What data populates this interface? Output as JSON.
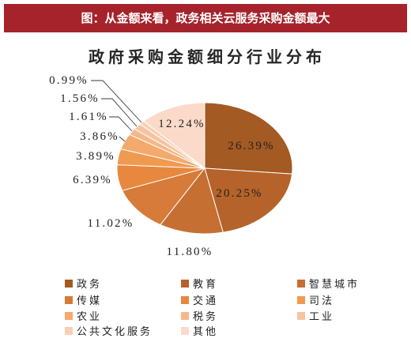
{
  "banner": {
    "caption": "图：从金额来看，政务相关云服务采购金额最大",
    "color": "#A6232B"
  },
  "chart_data": {
    "type": "pie",
    "title": "政府采购金额细分行业分布",
    "unit": "%",
    "categories": [
      "政务",
      "教育",
      "智慧城市",
      "传媒",
      "交通",
      "司法",
      "农业",
      "税务",
      "工业",
      "公共文化服务",
      "其他"
    ],
    "values": [
      26.39,
      20.25,
      11.8,
      11.02,
      6.39,
      3.89,
      3.86,
      1.61,
      1.56,
      0.99,
      12.24
    ],
    "colors": [
      "#A35A23",
      "#B5632A",
      "#C66F33",
      "#D67B3A",
      "#E8883E",
      "#F09A50",
      "#F3AA6C",
      "#F5B88B",
      "#F7C4A0",
      "#F9CFB4",
      "#FBDACA"
    ],
    "legend_position": "bottom"
  }
}
